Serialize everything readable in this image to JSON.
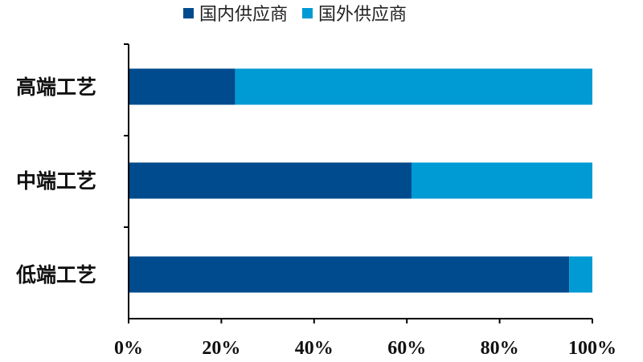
{
  "chart_data": {
    "type": "bar",
    "orientation": "horizontal",
    "stacked": true,
    "categories": [
      "高端工艺",
      "中端工艺",
      "低端工艺"
    ],
    "series": [
      {
        "name": "国内供应商",
        "values": [
          23,
          61,
          95
        ],
        "color": "#004B8D"
      },
      {
        "name": "国外供应商",
        "values": [
          77,
          39,
          5
        ],
        "color": "#009AD4"
      }
    ],
    "xlim": [
      0,
      100
    ],
    "xticks": [
      "0%",
      "20%",
      "40%",
      "60%",
      "80%",
      "100%"
    ],
    "title": "",
    "xlabel": "",
    "ylabel": "",
    "grid": false,
    "legend_position": "top"
  }
}
